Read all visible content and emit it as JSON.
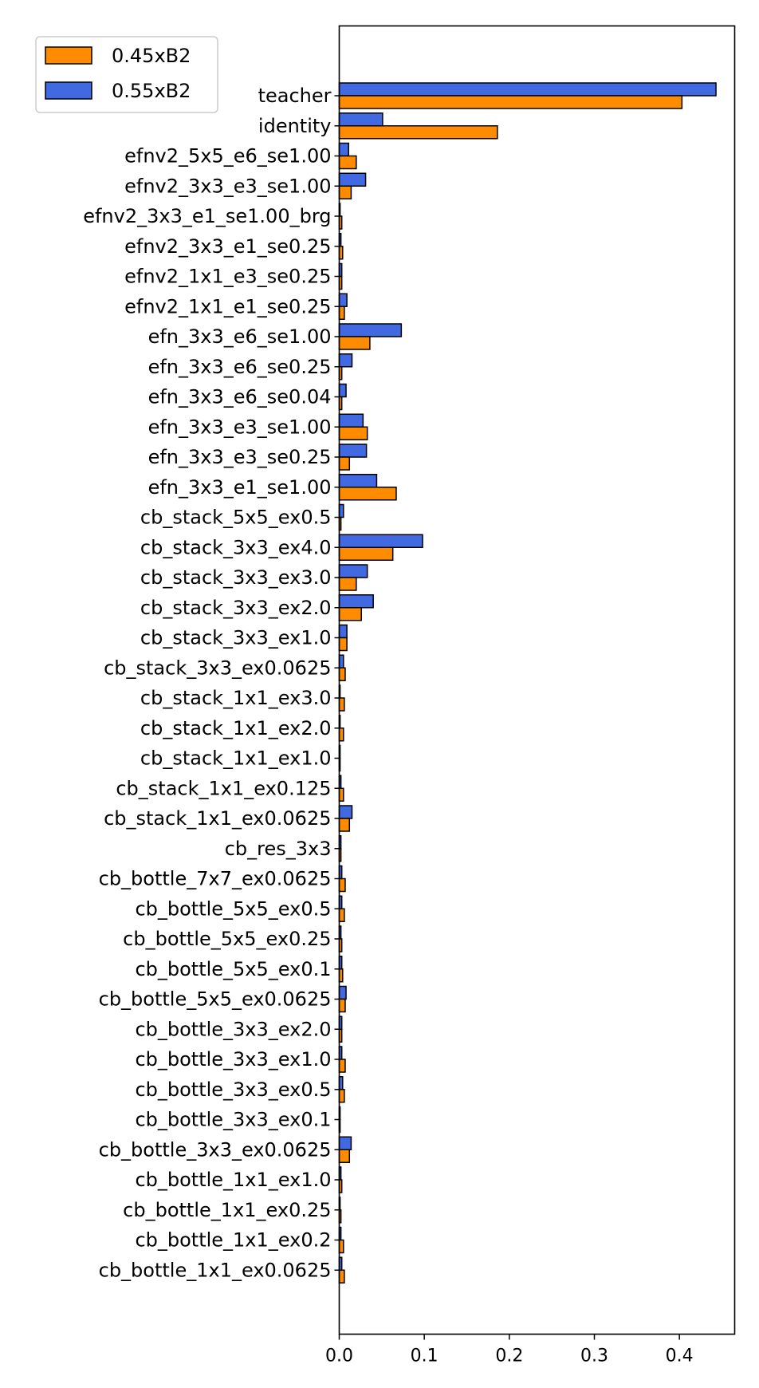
{
  "chart_data": {
    "type": "bar",
    "orientation": "horizontal",
    "title": "",
    "xlabel": "",
    "ylabel": "",
    "xlim": [
      0.0,
      0.465
    ],
    "xticks": [
      0.0,
      0.1,
      0.2,
      0.3,
      0.4
    ],
    "xtick_labels": [
      "0.0",
      "0.1",
      "0.2",
      "0.3",
      "0.4"
    ],
    "grid": false,
    "legend_position": "top-left",
    "categories": [
      "teacher",
      "identity",
      "efnv2_5x5_e6_se1.00",
      "efnv2_3x3_e3_se1.00",
      "efnv2_3x3_e1_se1.00_brg",
      "efnv2_3x3_e1_se0.25",
      "efnv2_1x1_e3_se0.25",
      "efnv2_1x1_e1_se0.25",
      "efn_3x3_e6_se1.00",
      "efn_3x3_e6_se0.25",
      "efn_3x3_e6_se0.04",
      "efn_3x3_e3_se1.00",
      "efn_3x3_e3_se0.25",
      "efn_3x3_e1_se1.00",
      "cb_stack_5x5_ex0.5",
      "cb_stack_3x3_ex4.0",
      "cb_stack_3x3_ex3.0",
      "cb_stack_3x3_ex2.0",
      "cb_stack_3x3_ex1.0",
      "cb_stack_3x3_ex0.0625",
      "cb_stack_1x1_ex3.0",
      "cb_stack_1x1_ex2.0",
      "cb_stack_1x1_ex1.0",
      "cb_stack_1x1_ex0.125",
      "cb_stack_1x1_ex0.0625",
      "cb_res_3x3",
      "cb_bottle_7x7_ex0.0625",
      "cb_bottle_5x5_ex0.5",
      "cb_bottle_5x5_ex0.25",
      "cb_bottle_5x5_ex0.1",
      "cb_bottle_5x5_ex0.0625",
      "cb_bottle_3x3_ex2.0",
      "cb_bottle_3x3_ex1.0",
      "cb_bottle_3x3_ex0.5",
      "cb_bottle_3x3_ex0.1",
      "cb_bottle_3x3_ex0.0625",
      "cb_bottle_1x1_ex1.0",
      "cb_bottle_1x1_ex0.25",
      "cb_bottle_1x1_ex0.2",
      "cb_bottle_1x1_ex0.0625"
    ],
    "series": [
      {
        "name": "0.45xB2",
        "color": "#ff8c00",
        "values": [
          0.403,
          0.186,
          0.02,
          0.014,
          0.003,
          0.004,
          0.003,
          0.006,
          0.036,
          0.003,
          0.003,
          0.033,
          0.012,
          0.067,
          0.002,
          0.063,
          0.02,
          0.026,
          0.009,
          0.007,
          0.006,
          0.005,
          0.001,
          0.005,
          0.012,
          0.002,
          0.007,
          0.006,
          0.003,
          0.004,
          0.007,
          0.003,
          0.007,
          0.006,
          0.001,
          0.012,
          0.003,
          0.002,
          0.005,
          0.006
        ]
      },
      {
        "name": "0.55xB2",
        "color": "#4169e1",
        "values": [
          0.443,
          0.051,
          0.011,
          0.031,
          0.001,
          0.002,
          0.003,
          0.009,
          0.073,
          0.015,
          0.008,
          0.028,
          0.032,
          0.044,
          0.005,
          0.098,
          0.033,
          0.04,
          0.009,
          0.005,
          0.001,
          0.001,
          0.001,
          0.002,
          0.015,
          0.002,
          0.003,
          0.003,
          0.002,
          0.003,
          0.008,
          0.003,
          0.003,
          0.004,
          0.001,
          0.014,
          0.002,
          0.001,
          0.002,
          0.003
        ]
      }
    ]
  }
}
